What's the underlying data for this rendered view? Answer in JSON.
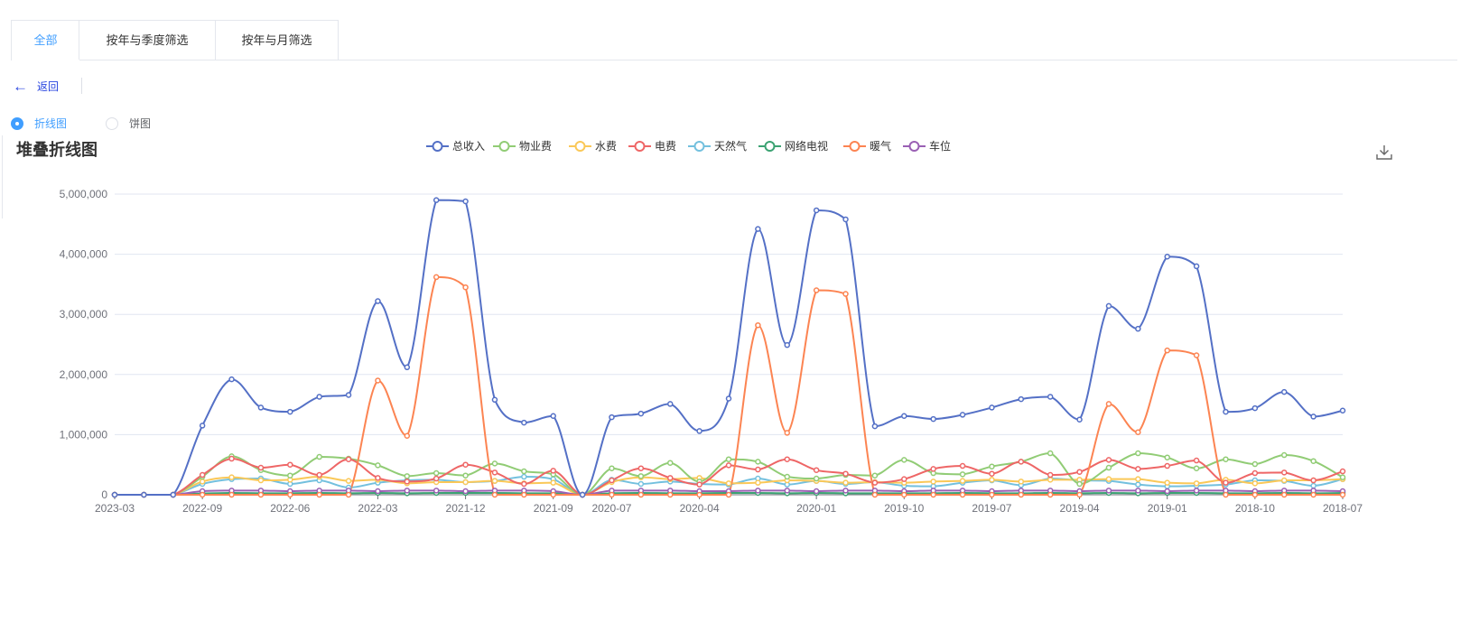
{
  "tabs": [
    {
      "label": "全部",
      "active": true
    },
    {
      "label": "按年与季度筛选",
      "active": false
    },
    {
      "label": "按年与月筛选",
      "active": false
    }
  ],
  "back": {
    "label": "返回",
    "icon": "arrow-left-icon"
  },
  "chart_type_radio": {
    "options": [
      {
        "label": "折线图",
        "selected": true
      },
      {
        "label": "饼图",
        "selected": false
      }
    ]
  },
  "chart_title": "堆叠折线图",
  "download_icon": "download-icon",
  "colors": {
    "accent": "#409eff",
    "grid": "#e0e6f1"
  },
  "chart_data": {
    "type": "line",
    "title": "堆叠折线图",
    "smooth": true,
    "ylim": [
      0,
      5000000
    ],
    "yticks": [
      0,
      1000000,
      2000000,
      3000000,
      4000000,
      5000000
    ],
    "ytick_labels": [
      "0",
      "1,000,000",
      "2,000,000",
      "3,000,000",
      "4,000,000",
      "5,000,000"
    ],
    "xtick_labels": [
      "2023-03",
      "2022-09",
      "2022-06",
      "2022-03",
      "2021-12",
      "2021-09",
      "2020-07",
      "2020-04",
      "2020-01",
      "2019-10",
      "2019-07",
      "2019-04",
      "2019-01",
      "2018-10",
      "2018-07"
    ],
    "xtick_indices": [
      0,
      3,
      6,
      9,
      12,
      15,
      17,
      20,
      24,
      27,
      30,
      33,
      36,
      39,
      42
    ],
    "n_points": 43,
    "legend_position": "top",
    "grid": true,
    "series": [
      {
        "name": "总收入",
        "color": "#5470c6",
        "values": [
          0,
          0,
          0,
          1150000,
          1920000,
          1450000,
          1380000,
          1630000,
          1660000,
          3220000,
          2120000,
          4900000,
          4880000,
          1580000,
          1200000,
          1310000,
          0,
          1290000,
          1350000,
          1510000,
          1060000,
          1600000,
          4420000,
          2490000,
          4730000,
          4580000,
          1140000,
          1310000,
          1260000,
          1330000,
          1450000,
          1590000,
          1630000,
          1250000,
          3140000,
          2760000,
          3960000,
          3800000,
          1380000,
          1440000,
          1710000,
          1300000,
          1400000
        ]
      },
      {
        "name": "物业费",
        "color": "#91cc75",
        "values": [
          0,
          0,
          0,
          300000,
          640000,
          410000,
          320000,
          630000,
          600000,
          490000,
          310000,
          360000,
          320000,
          520000,
          390000,
          340000,
          0,
          440000,
          310000,
          530000,
          220000,
          590000,
          550000,
          300000,
          270000,
          330000,
          320000,
          580000,
          360000,
          340000,
          470000,
          550000,
          690000,
          180000,
          450000,
          690000,
          620000,
          440000,
          590000,
          510000,
          660000,
          560000,
          290000
        ]
      },
      {
        "name": "水费",
        "color": "#fac858",
        "values": [
          0,
          0,
          0,
          220000,
          290000,
          240000,
          250000,
          300000,
          230000,
          250000,
          190000,
          210000,
          210000,
          230000,
          190000,
          200000,
          0,
          210000,
          290000,
          260000,
          280000,
          190000,
          200000,
          240000,
          230000,
          200000,
          210000,
          200000,
          220000,
          230000,
          250000,
          220000,
          250000,
          250000,
          260000,
          260000,
          200000,
          190000,
          250000,
          190000,
          240000,
          240000,
          260000
        ]
      },
      {
        "name": "电费",
        "color": "#ee6666",
        "values": [
          0,
          0,
          0,
          330000,
          600000,
          450000,
          500000,
          330000,
          590000,
          280000,
          220000,
          270000,
          500000,
          370000,
          180000,
          400000,
          0,
          240000,
          440000,
          280000,
          170000,
          490000,
          420000,
          590000,
          410000,
          350000,
          200000,
          260000,
          430000,
          480000,
          350000,
          550000,
          330000,
          380000,
          580000,
          430000,
          480000,
          570000,
          200000,
          360000,
          370000,
          240000,
          390000
        ]
      },
      {
        "name": "天然气",
        "color": "#73c0de",
        "values": [
          0,
          0,
          0,
          180000,
          260000,
          270000,
          180000,
          240000,
          120000,
          200000,
          240000,
          250000,
          210000,
          230000,
          300000,
          260000,
          0,
          250000,
          180000,
          220000,
          180000,
          170000,
          270000,
          170000,
          230000,
          180000,
          210000,
          150000,
          140000,
          200000,
          240000,
          160000,
          270000,
          240000,
          230000,
          170000,
          140000,
          150000,
          170000,
          240000,
          230000,
          150000,
          260000
        ]
      },
      {
        "name": "网络电视",
        "color": "#3ba272",
        "values": [
          0,
          0,
          0,
          20000,
          30000,
          25000,
          25000,
          30000,
          25000,
          30000,
          25000,
          30000,
          30000,
          30000,
          25000,
          25000,
          0,
          25000,
          30000,
          25000,
          25000,
          30000,
          30000,
          25000,
          30000,
          25000,
          25000,
          25000,
          25000,
          30000,
          25000,
          25000,
          30000,
          25000,
          30000,
          25000,
          30000,
          30000,
          25000,
          25000,
          30000,
          25000,
          30000
        ]
      },
      {
        "name": "暖气",
        "color": "#fc8452",
        "values": [
          0,
          0,
          0,
          0,
          0,
          0,
          0,
          0,
          0,
          1900000,
          980000,
          3620000,
          3450000,
          0,
          0,
          0,
          0,
          0,
          0,
          0,
          0,
          0,
          2820000,
          1030000,
          3400000,
          3340000,
          0,
          0,
          0,
          0,
          0,
          0,
          0,
          0,
          1510000,
          1040000,
          2400000,
          2320000,
          0,
          0,
          0,
          0,
          0
        ]
      },
      {
        "name": "车位",
        "color": "#9a60b4",
        "values": [
          0,
          0,
          0,
          60000,
          70000,
          70000,
          60000,
          70000,
          70000,
          60000,
          70000,
          70000,
          60000,
          70000,
          70000,
          60000,
          0,
          70000,
          70000,
          70000,
          60000,
          60000,
          70000,
          70000,
          60000,
          70000,
          70000,
          60000,
          70000,
          70000,
          60000,
          70000,
          70000,
          60000,
          70000,
          70000,
          60000,
          70000,
          70000,
          60000,
          70000,
          70000,
          60000
        ]
      }
    ]
  }
}
